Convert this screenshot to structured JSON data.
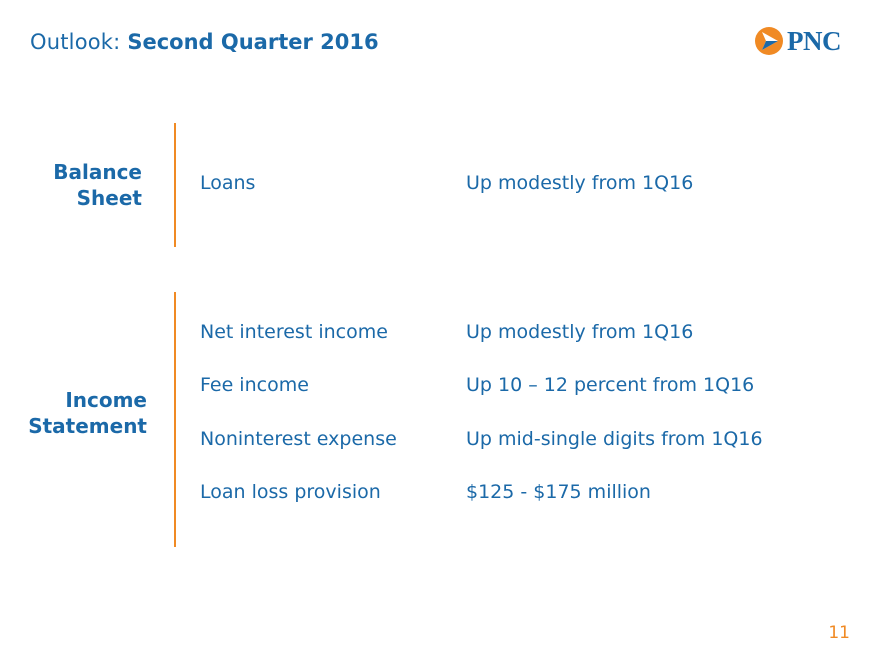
{
  "header": {
    "title_prefix": "Outlook: ",
    "title_main": "Second Quarter 2016",
    "logo_text": "PNC"
  },
  "colors": {
    "brand_blue": "#1b69a8",
    "accent_orange": "#f08a24"
  },
  "sections": [
    {
      "label_line1": "Balance",
      "label_line2": "Sheet",
      "items": [
        {
          "label": "Loans",
          "value": "Up modestly from 1Q16"
        }
      ]
    },
    {
      "label_line1": "Income",
      "label_line2": "Statement",
      "items": [
        {
          "label": "Net interest income",
          "value": "Up modestly from 1Q16"
        },
        {
          "label": "Fee income",
          "value": "Up 10 – 12 percent from 1Q16"
        },
        {
          "label": "Noninterest expense",
          "value": "Up mid-single digits from 1Q16"
        },
        {
          "label": "Loan loss provision",
          "value": "$125 - $175 million"
        }
      ]
    }
  ],
  "footer": {
    "page_number": "11"
  }
}
